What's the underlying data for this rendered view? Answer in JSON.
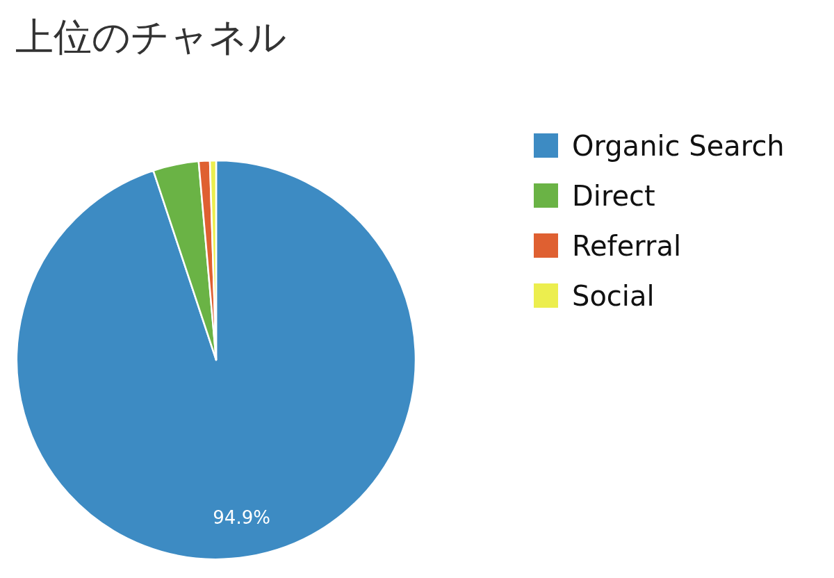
{
  "chart_data": {
    "type": "pie",
    "title": "上位のチャネル",
    "categories": [
      "Organic Search",
      "Direct",
      "Referral",
      "Social"
    ],
    "values": [
      94.9,
      3.7,
      0.9,
      0.5
    ],
    "value_labels": [
      "94.9%",
      null,
      null,
      null
    ],
    "colors": [
      "#3d8bc3",
      "#6ab345",
      "#df6031",
      "#ecee4e"
    ],
    "legend": "right"
  }
}
